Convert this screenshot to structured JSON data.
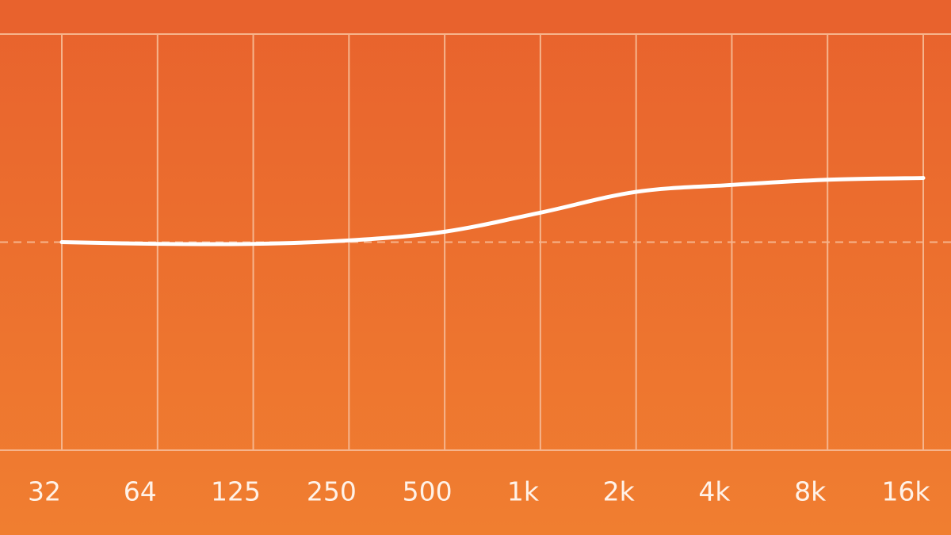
{
  "chart_data": {
    "type": "line",
    "categories": [
      "32",
      "64",
      "125",
      "250",
      "500",
      "1k",
      "2k",
      "4k",
      "8k",
      "16k"
    ],
    "values": [
      0,
      -0.1,
      -0.1,
      0.1,
      0.6,
      1.7,
      2.9,
      3.3,
      3.6,
      3.7
    ],
    "color": "#ffffff",
    "ylim": [
      -12,
      12
    ],
    "yticks": [
      0
    ],
    "grid": true
  }
}
